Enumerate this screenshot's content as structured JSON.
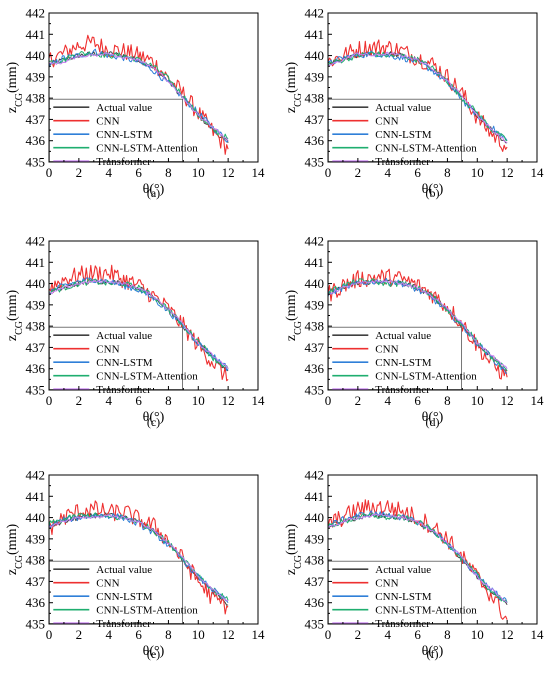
{
  "figure": {
    "panels": [
      "(a)",
      "(b)",
      "(c)",
      "(d)",
      "(e)",
      "(f)"
    ]
  },
  "axes": {
    "xlabel": "θ(°)",
    "ylabel_main": "z",
    "ylabel_sub": "CG",
    "ylabel_unit": "(mm)",
    "xticks": [
      "0",
      "2",
      "4",
      "6",
      "8",
      "10",
      "12",
      "14"
    ],
    "yticks": [
      "435",
      "436",
      "437",
      "438",
      "439",
      "440",
      "441",
      "442"
    ]
  },
  "legend": {
    "entries": [
      "Actual value",
      "CNN",
      "CNN-LSTM",
      "CNN-LSTM-Attention",
      "Transformer"
    ],
    "colors": [
      "#404040",
      "#ee3030",
      "#2f7fd8",
      "#1fae6f",
      "#c57cf0"
    ]
  },
  "chart_data": [
    {
      "type": "line",
      "title": "",
      "panel": "(a)",
      "xlabel": "θ(°)",
      "ylabel": "zCG(mm)",
      "xlim": [
        0,
        14
      ],
      "ylim": [
        435,
        442
      ],
      "x": [
        0,
        1,
        2,
        3,
        4,
        5,
        6,
        7,
        8,
        9,
        10,
        11,
        12
      ],
      "series": [
        {
          "name": "Actual value",
          "values": [
            439.6,
            439.8,
            440.0,
            440.1,
            440.1,
            440.0,
            439.8,
            439.4,
            438.8,
            438.0,
            437.2,
            436.5,
            435.9
          ]
        },
        {
          "name": "CNN",
          "values": [
            439.8,
            440.1,
            440.5,
            440.6,
            440.3,
            440.2,
            440.0,
            439.7,
            438.9,
            438.2,
            437.3,
            436.4,
            435.6
          ]
        },
        {
          "name": "CNN-LSTM",
          "values": [
            439.5,
            439.9,
            440.0,
            440.2,
            440.0,
            439.9,
            439.7,
            439.3,
            438.7,
            438.0,
            437.3,
            436.6,
            436.0
          ]
        },
        {
          "name": "CNN-LSTM-Attention",
          "values": [
            439.7,
            439.8,
            440.1,
            440.1,
            440.0,
            440.0,
            439.8,
            439.5,
            438.9,
            438.1,
            437.2,
            436.5,
            436.1
          ]
        },
        {
          "name": "Transformer",
          "values": [
            439.6,
            439.7,
            440.0,
            440.0,
            440.1,
            439.9,
            439.8,
            439.4,
            438.8,
            438.0,
            437.2,
            436.6,
            436.0
          ]
        }
      ]
    },
    {
      "type": "line",
      "title": "",
      "panel": "(b)",
      "xlabel": "θ(°)",
      "ylabel": "zCG(mm)",
      "xlim": [
        0,
        14
      ],
      "ylim": [
        435,
        442
      ],
      "x": [
        0,
        1,
        2,
        3,
        4,
        5,
        6,
        7,
        8,
        9,
        10,
        11,
        12
      ],
      "series": [
        {
          "name": "Actual value",
          "values": [
            439.6,
            439.8,
            440.0,
            440.1,
            440.1,
            440.0,
            439.8,
            439.4,
            438.8,
            438.0,
            437.2,
            436.5,
            435.9
          ]
        },
        {
          "name": "CNN",
          "values": [
            439.7,
            440.0,
            440.3,
            440.4,
            440.4,
            440.2,
            439.9,
            439.6,
            439.0,
            438.2,
            437.1,
            436.3,
            435.7
          ]
        },
        {
          "name": "CNN-LSTM",
          "values": [
            439.6,
            439.9,
            440.0,
            440.1,
            440.0,
            439.9,
            439.7,
            439.3,
            438.7,
            437.9,
            437.2,
            436.6,
            436.0
          ]
        },
        {
          "name": "CNN-LSTM-Attention",
          "values": [
            439.6,
            439.8,
            440.0,
            440.1,
            440.0,
            440.0,
            439.8,
            439.4,
            438.8,
            438.0,
            437.3,
            436.5,
            436.0
          ]
        },
        {
          "name": "Transformer",
          "values": [
            439.5,
            439.8,
            440.1,
            440.0,
            440.1,
            440.0,
            439.8,
            439.4,
            438.8,
            438.1,
            437.2,
            436.5,
            435.9
          ]
        }
      ]
    },
    {
      "type": "line",
      "title": "",
      "panel": "(c)",
      "xlabel": "θ(°)",
      "ylabel": "zCG(mm)",
      "xlim": [
        0,
        14
      ],
      "ylim": [
        435,
        442
      ],
      "x": [
        0,
        1,
        2,
        3,
        4,
        5,
        6,
        7,
        8,
        9,
        10,
        11,
        12
      ],
      "series": [
        {
          "name": "Actual value",
          "values": [
            439.6,
            439.8,
            440.0,
            440.1,
            440.1,
            440.0,
            439.8,
            439.4,
            438.8,
            438.0,
            437.2,
            436.5,
            435.9
          ]
        },
        {
          "name": "CNN",
          "values": [
            439.8,
            440.2,
            440.4,
            440.5,
            440.5,
            440.2,
            439.9,
            439.4,
            438.8,
            438.0,
            437.1,
            436.3,
            435.5
          ]
        },
        {
          "name": "CNN-LSTM",
          "values": [
            439.6,
            439.9,
            440.1,
            440.2,
            440.1,
            439.9,
            439.7,
            439.3,
            438.7,
            438.0,
            437.2,
            436.6,
            436.0
          ]
        },
        {
          "name": "CNN-LSTM-Attention",
          "values": [
            439.6,
            439.8,
            440.0,
            440.1,
            440.0,
            440.0,
            439.8,
            439.4,
            438.8,
            438.0,
            437.3,
            436.5,
            436.0
          ]
        },
        {
          "name": "Transformer",
          "values": [
            439.5,
            439.8,
            440.0,
            440.1,
            440.1,
            440.0,
            439.8,
            439.4,
            438.8,
            438.1,
            437.2,
            436.6,
            436.0
          ]
        }
      ]
    },
    {
      "type": "line",
      "title": "",
      "panel": "(d)",
      "xlabel": "θ(°)",
      "ylabel": "zCG(mm)",
      "xlim": [
        0,
        14
      ],
      "ylim": [
        435,
        442
      ],
      "x": [
        0,
        1,
        2,
        3,
        4,
        5,
        6,
        7,
        8,
        9,
        10,
        11,
        12
      ],
      "series": [
        {
          "name": "Actual value",
          "values": [
            439.6,
            439.8,
            440.0,
            440.1,
            440.1,
            440.0,
            439.8,
            439.4,
            438.8,
            438.0,
            437.2,
            436.5,
            435.9
          ]
        },
        {
          "name": "CNN",
          "values": [
            439.5,
            439.9,
            440.2,
            440.3,
            440.3,
            440.2,
            439.9,
            439.5,
            438.9,
            438.1,
            437.1,
            436.2,
            435.6
          ]
        },
        {
          "name": "CNN-LSTM",
          "values": [
            439.5,
            439.8,
            440.0,
            440.1,
            440.1,
            440.0,
            439.7,
            439.3,
            438.7,
            438.0,
            437.2,
            436.5,
            435.8
          ]
        },
        {
          "name": "CNN-LSTM-Attention",
          "values": [
            439.6,
            439.9,
            440.1,
            440.1,
            440.0,
            440.0,
            439.8,
            439.4,
            438.8,
            438.0,
            437.3,
            436.5,
            435.9
          ]
        },
        {
          "name": "Transformer",
          "values": [
            439.5,
            439.8,
            440.0,
            440.1,
            440.1,
            440.0,
            439.8,
            439.4,
            438.8,
            438.1,
            437.2,
            436.6,
            436.0
          ]
        }
      ]
    },
    {
      "type": "line",
      "title": "",
      "panel": "(e)",
      "xlabel": "θ(°)",
      "ylabel": "zCG(mm)",
      "xlim": [
        0,
        14
      ],
      "ylim": [
        435,
        442
      ],
      "x": [
        0,
        1,
        2,
        3,
        4,
        5,
        6,
        7,
        8,
        9,
        10,
        11,
        12
      ],
      "series": [
        {
          "name": "Actual value",
          "values": [
            439.6,
            439.8,
            440.0,
            440.1,
            440.1,
            440.0,
            439.8,
            439.4,
            438.8,
            438.0,
            437.2,
            436.5,
            435.9
          ]
        },
        {
          "name": "CNN",
          "values": [
            439.5,
            440.0,
            440.3,
            440.4,
            440.2,
            440.3,
            439.9,
            439.6,
            438.9,
            438.0,
            437.0,
            436.2,
            435.8
          ]
        },
        {
          "name": "CNN-LSTM",
          "values": [
            439.6,
            439.9,
            440.0,
            440.1,
            440.1,
            440.0,
            439.7,
            439.3,
            438.7,
            438.0,
            437.2,
            436.6,
            436.0
          ]
        },
        {
          "name": "CNN-LSTM-Attention",
          "values": [
            439.7,
            439.9,
            440.1,
            440.1,
            440.0,
            440.0,
            439.8,
            439.4,
            438.8,
            438.1,
            437.3,
            436.6,
            436.1
          ]
        },
        {
          "name": "Transformer",
          "values": [
            439.6,
            439.8,
            440.0,
            440.0,
            440.1,
            440.0,
            439.8,
            439.4,
            438.8,
            438.1,
            437.2,
            436.6,
            436.1
          ]
        }
      ]
    },
    {
      "type": "line",
      "title": "",
      "panel": "(f)",
      "xlabel": "θ(°)",
      "ylabel": "zCG(mm)",
      "xlim": [
        0,
        14
      ],
      "ylim": [
        435,
        442
      ],
      "x": [
        0,
        1,
        2,
        3,
        4,
        5,
        6,
        7,
        8,
        9,
        10,
        11,
        12
      ],
      "series": [
        {
          "name": "Actual value",
          "values": [
            439.6,
            439.8,
            440.0,
            440.1,
            440.1,
            440.0,
            439.8,
            439.4,
            438.8,
            438.0,
            437.2,
            436.5,
            435.9
          ]
        },
        {
          "name": "CNN",
          "values": [
            439.7,
            440.0,
            440.4,
            440.5,
            440.5,
            440.3,
            440.0,
            439.6,
            439.0,
            438.1,
            437.2,
            436.3,
            435.2
          ]
        },
        {
          "name": "CNN-LSTM",
          "values": [
            439.6,
            439.9,
            440.1,
            440.2,
            440.1,
            440.0,
            439.8,
            439.4,
            438.8,
            438.0,
            437.3,
            436.6,
            436.0
          ]
        },
        {
          "name": "CNN-LSTM-Attention",
          "values": [
            439.6,
            439.8,
            440.0,
            440.1,
            440.0,
            440.0,
            439.8,
            439.4,
            438.8,
            438.0,
            437.3,
            436.5,
            436.0
          ]
        },
        {
          "name": "Transformer",
          "values": [
            439.5,
            439.8,
            440.0,
            440.1,
            440.1,
            440.0,
            439.8,
            439.4,
            438.8,
            438.1,
            437.2,
            436.6,
            436.0
          ]
        }
      ]
    }
  ]
}
